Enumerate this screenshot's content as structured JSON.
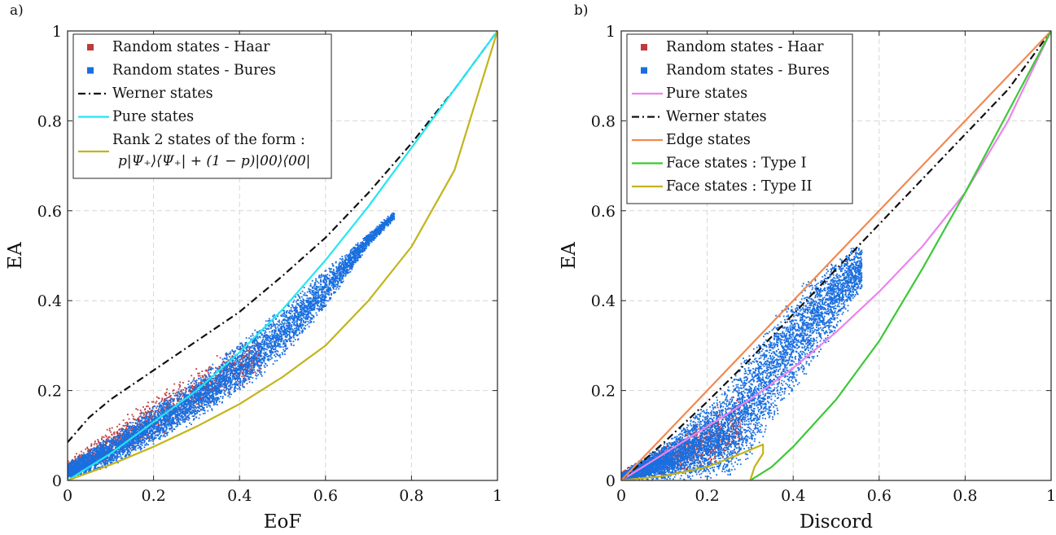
{
  "chart_data": [
    {
      "type": "scatter",
      "panel_label": "a)",
      "xlabel": "EoF",
      "ylabel": "EA",
      "xlim": [
        0,
        1
      ],
      "ylim": [
        0,
        1
      ],
      "x_ticks": [
        0,
        0.2,
        0.4,
        0.6,
        0.8,
        1
      ],
      "y_ticks": [
        0,
        0.2,
        0.4,
        0.6,
        0.8,
        1
      ],
      "x_tick_labels": [
        "0",
        "0.2",
        "0.4",
        "0.6",
        "0.8",
        "1"
      ],
      "y_tick_labels": [
        "0",
        "0.2",
        "0.4",
        "0.6",
        "0.8",
        "1"
      ],
      "grid": true,
      "legend_position": "top-left",
      "scatter_series": [
        {
          "name": "Random states - Haar",
          "color": "#c0393b",
          "band": [
            {
              "x": 0.0,
              "lo": 0.0,
              "hi": 0.045
            },
            {
              "x": 0.1,
              "lo": 0.04,
              "hi": 0.12
            },
            {
              "x": 0.2,
              "lo": 0.09,
              "hi": 0.19
            },
            {
              "x": 0.3,
              "lo": 0.14,
              "hi": 0.25
            },
            {
              "x": 0.4,
              "lo": 0.2,
              "hi": 0.31
            },
            {
              "x": 0.45,
              "lo": 0.23,
              "hi": 0.33
            }
          ]
        },
        {
          "name": "Random states - Bures",
          "color": "#1a6fe0",
          "band": [
            {
              "x": 0.0,
              "lo": 0.0,
              "hi": 0.04
            },
            {
              "x": 0.1,
              "lo": 0.03,
              "hi": 0.1
            },
            {
              "x": 0.2,
              "lo": 0.08,
              "hi": 0.17
            },
            {
              "x": 0.3,
              "lo": 0.13,
              "hi": 0.23
            },
            {
              "x": 0.4,
              "lo": 0.19,
              "hi": 0.31
            },
            {
              "x": 0.5,
              "lo": 0.27,
              "hi": 0.39
            },
            {
              "x": 0.6,
              "lo": 0.38,
              "hi": 0.47
            },
            {
              "x": 0.7,
              "lo": 0.52,
              "hi": 0.55
            },
            {
              "x": 0.76,
              "lo": 0.58,
              "hi": 0.6
            }
          ]
        }
      ],
      "lines": [
        {
          "name": "Werner states",
          "color": "#111111",
          "dash": "9 4 2 4",
          "points": [
            [
              0,
              0.085
            ],
            [
              0.05,
              0.14
            ],
            [
              0.1,
              0.18
            ],
            [
              0.2,
              0.245
            ],
            [
              0.3,
              0.31
            ],
            [
              0.4,
              0.375
            ],
            [
              0.5,
              0.455
            ],
            [
              0.6,
              0.54
            ],
            [
              0.7,
              0.64
            ],
            [
              0.8,
              0.75
            ],
            [
              0.9,
              0.87
            ],
            [
              1,
              1
            ]
          ]
        },
        {
          "name": "Pure states",
          "color": "#22e6f2",
          "dash": "",
          "points": [
            [
              0,
              0
            ],
            [
              0.1,
              0.06
            ],
            [
              0.2,
              0.13
            ],
            [
              0.3,
              0.2
            ],
            [
              0.4,
              0.285
            ],
            [
              0.5,
              0.38
            ],
            [
              0.6,
              0.49
            ],
            [
              0.7,
              0.61
            ],
            [
              0.8,
              0.74
            ],
            [
              0.9,
              0.87
            ],
            [
              1,
              1
            ]
          ]
        },
        {
          "name": "Rank 2 states of the form :",
          "color": "#c2b41c",
          "dash": "",
          "points": [
            [
              0,
              0
            ],
            [
              0.1,
              0.035
            ],
            [
              0.2,
              0.075
            ],
            [
              0.3,
              0.12
            ],
            [
              0.4,
              0.17
            ],
            [
              0.5,
              0.23
            ],
            [
              0.6,
              0.3
            ],
            [
              0.7,
              0.4
            ],
            [
              0.8,
              0.52
            ],
            [
              0.9,
              0.69
            ],
            [
              1,
              1
            ]
          ]
        }
      ],
      "legend": [
        {
          "kind": "marker",
          "label": "Random states - Haar",
          "color": "#c0393b"
        },
        {
          "kind": "marker",
          "label": "Random states - Bures",
          "color": "#1a6fe0"
        },
        {
          "kind": "line",
          "label": "Werner states",
          "color": "#111111",
          "dash": "9 4 2 4"
        },
        {
          "kind": "line",
          "label": "Pure states",
          "color": "#22e6f2",
          "dash": ""
        },
        {
          "kind": "line",
          "label": "Rank 2 states of the form :",
          "color": "#c2b41c",
          "dash": "",
          "formula": "p|Ψ₊⟩⟨Ψ₊| + (1 − p)|00⟩⟨00|"
        }
      ]
    },
    {
      "type": "scatter",
      "panel_label": "b)",
      "xlabel": "Discord",
      "ylabel": "EA",
      "xlim": [
        0,
        1
      ],
      "ylim": [
        0,
        1
      ],
      "x_ticks": [
        0,
        0.2,
        0.4,
        0.6,
        0.8,
        1
      ],
      "y_ticks": [
        0,
        0.2,
        0.4,
        0.6,
        0.8,
        1
      ],
      "x_tick_labels": [
        "0",
        "0.2",
        "0.4",
        "0.6",
        "0.8",
        "1"
      ],
      "y_tick_labels": [
        "0",
        "0.2",
        "0.4",
        "0.6",
        "0.8",
        "1"
      ],
      "grid": true,
      "legend_position": "top-left",
      "scatter_series": [
        {
          "name": "Random states - Haar",
          "color": "#c0393b",
          "band": [
            {
              "x": 0.0,
              "lo": 0.0,
              "hi": 0.02
            },
            {
              "x": 0.1,
              "lo": 0.01,
              "hi": 0.08
            },
            {
              "x": 0.2,
              "lo": 0.03,
              "hi": 0.15
            },
            {
              "x": 0.28,
              "lo": 0.06,
              "hi": 0.2
            }
          ]
        },
        {
          "name": "Random states - Bures",
          "color": "#1a6fe0",
          "band": [
            {
              "x": 0.0,
              "lo": 0.0,
              "hi": 0.015
            },
            {
              "x": 0.1,
              "lo": 0.0,
              "hi": 0.085
            },
            {
              "x": 0.2,
              "lo": 0.0,
              "hi": 0.175
            },
            {
              "x": 0.25,
              "lo": 0.0,
              "hi": 0.22
            },
            {
              "x": 0.3,
              "lo": 0.05,
              "hi": 0.3
            },
            {
              "x": 0.35,
              "lo": 0.12,
              "hi": 0.36
            },
            {
              "x": 0.4,
              "lo": 0.19,
              "hi": 0.42
            },
            {
              "x": 0.45,
              "lo": 0.26,
              "hi": 0.46
            },
            {
              "x": 0.5,
              "lo": 0.33,
              "hi": 0.5
            },
            {
              "x": 0.56,
              "lo": 0.42,
              "hi": 0.53
            }
          ]
        }
      ],
      "lines": [
        {
          "name": "Pure states",
          "color": "#ec84ec",
          "dash": "",
          "points": [
            [
              0,
              0
            ],
            [
              0.1,
              0.06
            ],
            [
              0.2,
              0.12
            ],
            [
              0.3,
              0.18
            ],
            [
              0.4,
              0.25
            ],
            [
              0.5,
              0.33
            ],
            [
              0.6,
              0.42
            ],
            [
              0.7,
              0.52
            ],
            [
              0.8,
              0.64
            ],
            [
              0.9,
              0.8
            ],
            [
              1,
              1
            ]
          ]
        },
        {
          "name": "Werner states",
          "color": "#111111",
          "dash": "9 4 2 4",
          "points": [
            [
              0,
              0
            ],
            [
              0.1,
              0.085
            ],
            [
              0.2,
              0.175
            ],
            [
              0.3,
              0.27
            ],
            [
              0.4,
              0.37
            ],
            [
              0.5,
              0.47
            ],
            [
              0.6,
              0.57
            ],
            [
              0.7,
              0.67
            ],
            [
              0.8,
              0.77
            ],
            [
              0.9,
              0.87
            ],
            [
              1,
              1
            ]
          ]
        },
        {
          "name": "Edge states",
          "color": "#f08a52",
          "dash": "",
          "points": [
            [
              0,
              0
            ],
            [
              1,
              1
            ]
          ]
        },
        {
          "name": "Face states : Type I",
          "color": "#3dc837",
          "dash": "",
          "points": [
            [
              0.3,
              0.0
            ],
            [
              0.35,
              0.03
            ],
            [
              0.4,
              0.075
            ],
            [
              0.5,
              0.18
            ],
            [
              0.6,
              0.31
            ],
            [
              0.7,
              0.47
            ],
            [
              0.8,
              0.64
            ],
            [
              0.9,
              0.82
            ],
            [
              1,
              1
            ]
          ]
        },
        {
          "name": "Face states : Type II",
          "color": "#c2b41c",
          "dash": "",
          "points": [
            [
              0,
              0
            ],
            [
              0.1,
              0.01
            ],
            [
              0.2,
              0.03
            ],
            [
              0.28,
              0.06
            ],
            [
              0.33,
              0.08
            ],
            [
              0.33,
              0.06
            ],
            [
              0.31,
              0.03
            ],
            [
              0.3,
              0.0
            ]
          ]
        }
      ],
      "legend": [
        {
          "kind": "marker",
          "label": "Random states - Haar",
          "color": "#c0393b"
        },
        {
          "kind": "marker",
          "label": "Random states - Bures",
          "color": "#1a6fe0"
        },
        {
          "kind": "line",
          "label": "Pure states",
          "color": "#ec84ec",
          "dash": ""
        },
        {
          "kind": "line",
          "label": "Werner states",
          "color": "#111111",
          "dash": "9 4 2 4"
        },
        {
          "kind": "line",
          "label": "Edge states",
          "color": "#f08a52",
          "dash": ""
        },
        {
          "kind": "line",
          "label": "Face states : Type I",
          "color": "#3dc837",
          "dash": ""
        },
        {
          "kind": "line",
          "label": "Face states : Type II",
          "color": "#c2b41c",
          "dash": ""
        }
      ]
    }
  ]
}
